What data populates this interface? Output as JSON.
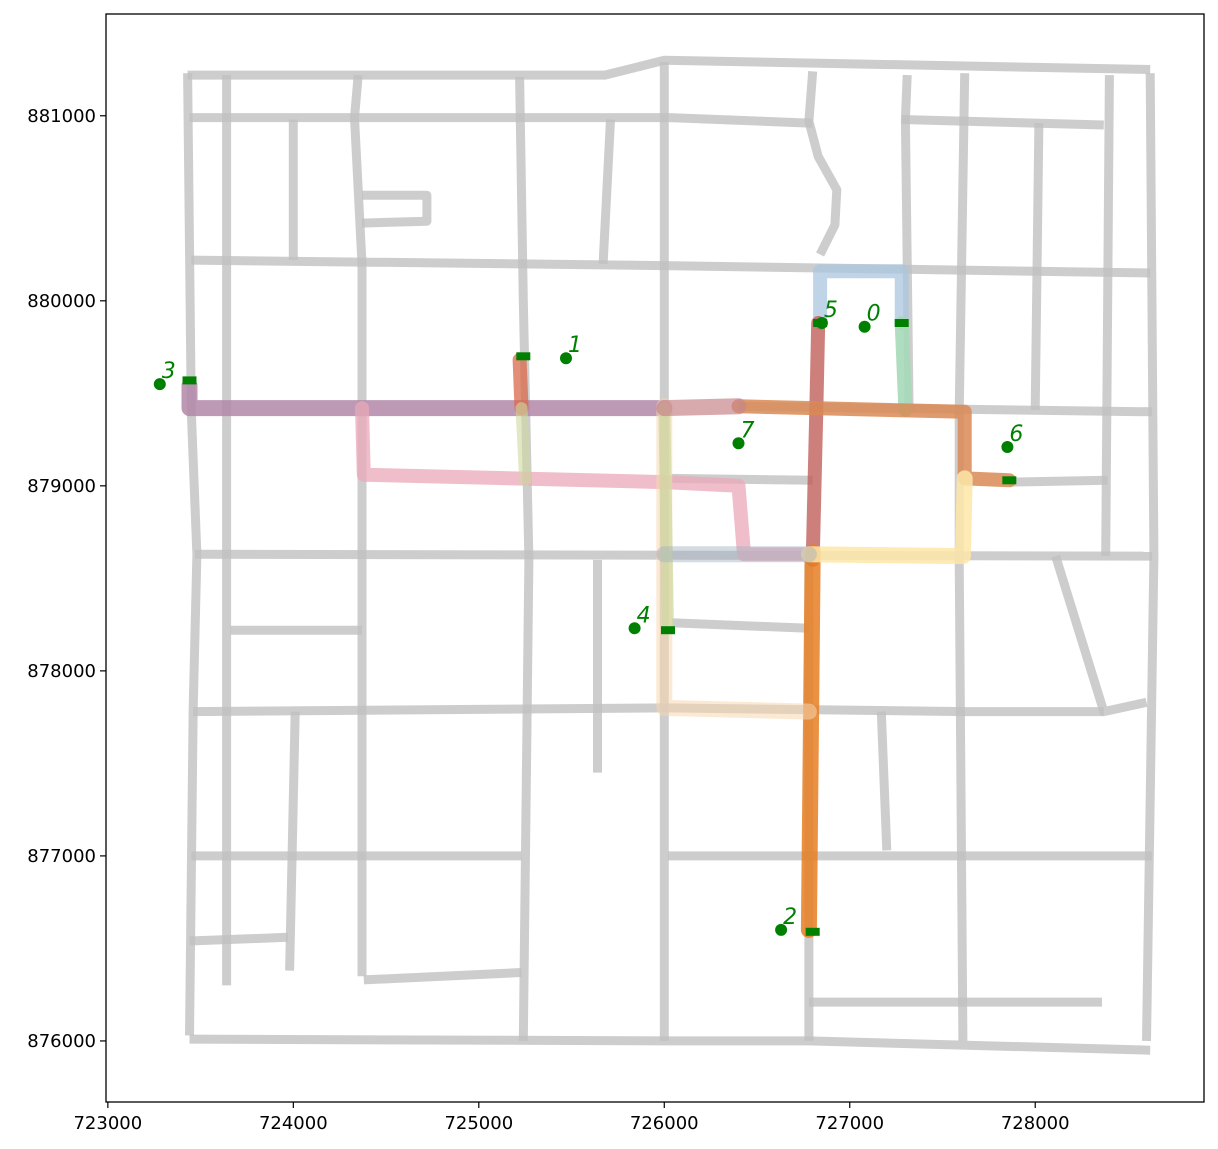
{
  "chart_data": {
    "type": "line",
    "title": "",
    "xlabel": "",
    "ylabel": "",
    "xlim": [
      722990,
      728910
    ],
    "ylim": [
      875670,
      881550
    ],
    "xticks": [
      723000,
      724000,
      725000,
      726000,
      727000,
      728000
    ],
    "yticks": [
      876000,
      877000,
      878000,
      879000,
      880000,
      881000
    ],
    "grid": false,
    "colors": {
      "network": "#c0c0c0",
      "points": "#008000",
      "frame": "#000000",
      "route_colors": [
        "#a9c6de",
        "#d96a4a",
        "#e67e22",
        "#b187a8",
        "#f8d7b0",
        "#c0605a",
        "#d98a55",
        "#b98e80",
        "#fde6a8",
        "#9fd0b0",
        "#e9a8b8",
        "#cfd8a0"
      ]
    },
    "points": [
      {
        "label": "0",
        "x": 727080,
        "y": 879860
      },
      {
        "label": "1",
        "x": 725470,
        "y": 879690
      },
      {
        "label": "2",
        "x": 726630,
        "y": 876600
      },
      {
        "label": "3",
        "x": 723280,
        "y": 879550
      },
      {
        "label": "4",
        "x": 725840,
        "y": 878230
      },
      {
        "label": "5",
        "x": 726850,
        "y": 879880
      },
      {
        "label": "6",
        "x": 727850,
        "y": 879210
      },
      {
        "label": "7",
        "x": 726400,
        "y": 879230
      }
    ],
    "stops": [
      {
        "x": 727280,
        "y": 879880
      },
      {
        "x": 725240,
        "y": 879700
      },
      {
        "x": 726800,
        "y": 876590
      },
      {
        "x": 723440,
        "y": 879570
      },
      {
        "x": 726020,
        "y": 878220
      },
      {
        "x": 726840,
        "y": 879880
      },
      {
        "x": 727860,
        "y": 879030
      }
    ],
    "network": [
      [
        [
          723430,
          881220
        ],
        [
          725680,
          881220
        ],
        [
          726000,
          881300
        ],
        [
          728620,
          881250
        ]
      ],
      [
        [
          723440,
          880990
        ],
        [
          726030,
          880990
        ],
        [
          726800,
          880960
        ]
      ],
      [
        [
          727280,
          880980
        ],
        [
          728370,
          880950
        ]
      ],
      [
        [
          723450,
          880220
        ],
        [
          726000,
          880190
        ],
        [
          728620,
          880150
        ]
      ],
      [
        [
          723430,
          881230
        ],
        [
          723450,
          879400
        ],
        [
          723480,
          878630
        ],
        [
          723460,
          877800
        ],
        [
          723440,
          876030
        ]
      ],
      [
        [
          723640,
          881220
        ],
        [
          723640,
          876300
        ]
      ],
      [
        [
          724000,
          880980
        ],
        [
          724000,
          880220
        ]
      ],
      [
        [
          724350,
          881220
        ],
        [
          724330,
          880990
        ],
        [
          724370,
          880200
        ],
        [
          724370,
          876350
        ]
      ],
      [
        [
          724370,
          880570
        ],
        [
          724720,
          880570
        ],
        [
          724720,
          880430
        ],
        [
          724370,
          880420
        ]
      ],
      [
        [
          725220,
          881210
        ],
        [
          725240,
          880000
        ],
        [
          725270,
          878600
        ],
        [
          725240,
          876000
        ]
      ],
      [
        [
          725710,
          880980
        ],
        [
          725670,
          880200
        ]
      ],
      [
        [
          726000,
          881290
        ],
        [
          726000,
          876000
        ]
      ],
      [
        [
          726800,
          881240
        ],
        [
          726780,
          880970
        ],
        [
          726830,
          880780
        ],
        [
          726930,
          880600
        ],
        [
          726920,
          880410
        ],
        [
          726840,
          880250
        ]
      ],
      [
        [
          727310,
          881220
        ],
        [
          727300,
          880980
        ],
        [
          727320,
          879400
        ]
      ],
      [
        [
          727620,
          881230
        ],
        [
          727590,
          879400
        ],
        [
          727590,
          878600
        ],
        [
          727610,
          876000
        ]
      ],
      [
        [
          728020,
          880960
        ],
        [
          728000,
          879410
        ]
      ],
      [
        [
          728400,
          881220
        ],
        [
          728380,
          878620
        ]
      ],
      [
        [
          728620,
          881230
        ],
        [
          728640,
          878620
        ],
        [
          728600,
          876000
        ]
      ],
      [
        [
          726400,
          879430
        ],
        [
          728630,
          879400
        ]
      ],
      [
        [
          726040,
          879040
        ],
        [
          726800,
          879030
        ]
      ],
      [
        [
          727860,
          879020
        ],
        [
          728390,
          879030
        ]
      ],
      [
        [
          723470,
          878630
        ],
        [
          728630,
          878620
        ]
      ],
      [
        [
          728110,
          878620
        ],
        [
          728370,
          877780
        ],
        [
          728600,
          877830
        ]
      ],
      [
        [
          723660,
          878220
        ],
        [
          724370,
          878220
        ]
      ],
      [
        [
          726040,
          878260
        ],
        [
          726780,
          878230
        ]
      ],
      [
        [
          725640,
          878600
        ],
        [
          725640,
          877450
        ]
      ],
      [
        [
          723460,
          877780
        ],
        [
          726020,
          877800
        ],
        [
          727620,
          877780
        ],
        [
          728370,
          877780
        ]
      ],
      [
        [
          724010,
          877780
        ],
        [
          723980,
          876380
        ]
      ],
      [
        [
          727170,
          877780
        ],
        [
          727200,
          877030
        ]
      ],
      [
        [
          723450,
          877000
        ],
        [
          725230,
          877000
        ]
      ],
      [
        [
          726020,
          877000
        ],
        [
          728630,
          877000
        ]
      ],
      [
        [
          723440,
          876540
        ],
        [
          723970,
          876560
        ]
      ],
      [
        [
          724380,
          876330
        ],
        [
          725230,
          876370
        ]
      ],
      [
        [
          726780,
          876210
        ],
        [
          728360,
          876210
        ]
      ],
      [
        [
          723440,
          876010
        ],
        [
          726000,
          876000
        ],
        [
          726780,
          876000
        ],
        [
          728620,
          875950
        ]
      ],
      [
        [
          726780,
          876000
        ],
        [
          726780,
          878600
        ]
      ]
    ],
    "routes": [
      {
        "color": "#a9c6de",
        "opacity": 0.75,
        "width": 14,
        "path": [
          [
            726840,
            879880
          ],
          [
            726840,
            880160
          ],
          [
            727280,
            880160
          ],
          [
            727280,
            879880
          ]
        ]
      },
      {
        "color": "#a6d9b8",
        "opacity": 0.9,
        "width": 14,
        "path": [
          [
            727280,
            879880
          ],
          [
            727300,
            879410
          ]
        ]
      },
      {
        "color": "#b187a8",
        "opacity": 0.85,
        "width": 16,
        "path": [
          [
            723440,
            879540
          ],
          [
            723440,
            879420
          ],
          [
            726000,
            879420
          ]
        ]
      },
      {
        "color": "#e9a8b8",
        "opacity": 0.75,
        "width": 14,
        "path": [
          [
            724370,
            879420
          ],
          [
            724380,
            879060
          ],
          [
            726000,
            879020
          ],
          [
            726400,
            879000
          ],
          [
            726430,
            878630
          ],
          [
            726780,
            878630
          ]
        ]
      },
      {
        "color": "#c0605a",
        "opacity": 0.8,
        "width": 14,
        "path": [
          [
            726830,
            879880
          ],
          [
            726820,
            879430
          ],
          [
            726800,
            878600
          ]
        ]
      },
      {
        "color": "#d98a55",
        "opacity": 0.85,
        "width": 14,
        "path": [
          [
            726400,
            879430
          ],
          [
            727620,
            879400
          ],
          [
            727620,
            879040
          ],
          [
            727860,
            879030
          ]
        ]
      },
      {
        "color": "#e67e22",
        "opacity": 0.85,
        "width": 16,
        "path": [
          [
            726800,
            878640
          ],
          [
            726780,
            876600
          ]
        ]
      },
      {
        "color": "#fde6a8",
        "opacity": 0.85,
        "width": 16,
        "path": [
          [
            726780,
            878630
          ],
          [
            727610,
            878620
          ],
          [
            727620,
            879040
          ]
        ]
      },
      {
        "color": "#f8d7b0",
        "opacity": 0.55,
        "width": 16,
        "path": [
          [
            726000,
            879430
          ],
          [
            726000,
            877800
          ],
          [
            726780,
            877780
          ]
        ]
      },
      {
        "color": "#cfd8a0",
        "opacity": 0.7,
        "width": 12,
        "path": [
          [
            726000,
            879420
          ],
          [
            726020,
            878230
          ]
        ]
      },
      {
        "color": "#d96a4a",
        "opacity": 0.75,
        "width": 14,
        "path": [
          [
            725220,
            879680
          ],
          [
            725230,
            879420
          ]
        ]
      },
      {
        "color": "#cfd8a0",
        "opacity": 0.6,
        "width": 12,
        "path": [
          [
            725230,
            879420
          ],
          [
            725250,
            879030
          ]
        ]
      },
      {
        "color": "#9fb0c0",
        "opacity": 0.45,
        "width": 16,
        "path": [
          [
            726000,
            878630
          ],
          [
            726780,
            878630
          ]
        ]
      },
      {
        "color": "#c8868a",
        "opacity": 0.7,
        "width": 16,
        "path": [
          [
            726000,
            879420
          ],
          [
            726400,
            879430
          ]
        ]
      }
    ]
  }
}
